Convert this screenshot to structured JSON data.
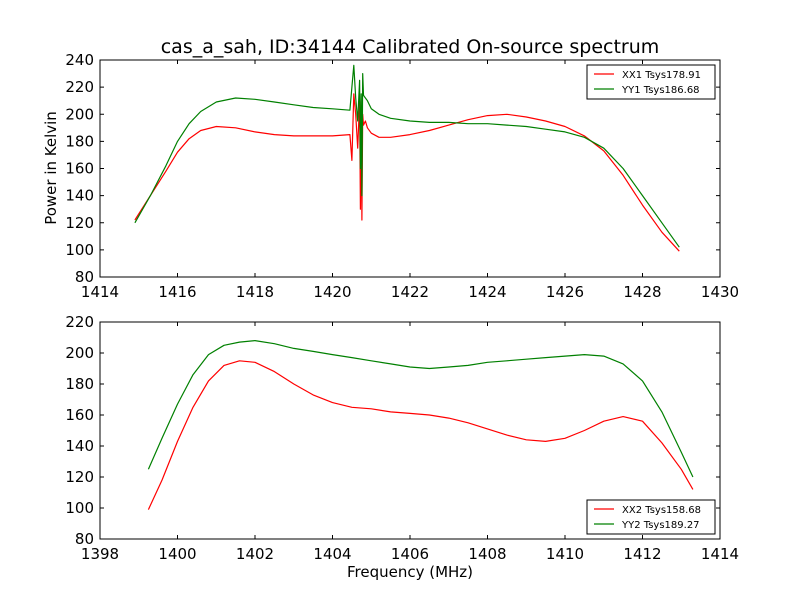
{
  "colors": {
    "red": "#ff0000",
    "green": "#008000"
  },
  "chart_data": [
    {
      "type": "line",
      "title": "cas_a_sah, ID:34144 Calibrated On-source spectrum",
      "xlabel": "",
      "ylabel": "Power in Kelvin",
      "xlim": [
        1414,
        1430
      ],
      "ylim": [
        80,
        240
      ],
      "xticks": [
        "1414",
        "1416",
        "1418",
        "1420",
        "1422",
        "1424",
        "1426",
        "1428",
        "1430"
      ],
      "yticks": [
        "80",
        "100",
        "120",
        "140",
        "160",
        "180",
        "200",
        "220",
        "240"
      ],
      "legend_position": "top-right",
      "series": [
        {
          "name": "XX1 Tsys178.91",
          "color": "#ff0000",
          "x": [
            1414.9,
            1415.3,
            1415.7,
            1416.0,
            1416.3,
            1416.6,
            1417.0,
            1417.5,
            1418.0,
            1418.5,
            1419.0,
            1419.5,
            1420.0,
            1420.45,
            1420.5,
            1420.55,
            1420.6,
            1420.65,
            1420.7,
            1420.72,
            1420.74,
            1420.76,
            1420.78,
            1420.8,
            1420.85,
            1420.9,
            1421.0,
            1421.2,
            1421.5,
            1422.0,
            1422.5,
            1423.0,
            1423.5,
            1424.0,
            1424.5,
            1425.0,
            1425.5,
            1426.0,
            1426.5,
            1427.0,
            1427.5,
            1428.0,
            1428.5,
            1428.95
          ],
          "values": [
            122,
            140,
            158,
            172,
            182,
            188,
            191,
            190,
            187,
            185,
            184,
            184,
            184,
            185,
            166,
            215,
            200,
            175,
            210,
            130,
            205,
            122,
            200,
            192,
            195,
            190,
            186,
            183,
            183,
            185,
            188,
            192,
            196,
            199,
            200,
            198,
            195,
            191,
            184,
            173,
            155,
            133,
            113,
            99
          ]
        },
        {
          "name": "YY1 Tsys186.68",
          "color": "#008000",
          "x": [
            1414.9,
            1415.3,
            1415.7,
            1416.0,
            1416.3,
            1416.6,
            1417.0,
            1417.5,
            1418.0,
            1418.5,
            1419.0,
            1419.5,
            1420.0,
            1420.45,
            1420.5,
            1420.55,
            1420.6,
            1420.65,
            1420.7,
            1420.72,
            1420.74,
            1420.76,
            1420.78,
            1420.8,
            1420.85,
            1420.9,
            1421.0,
            1421.2,
            1421.5,
            1422.0,
            1422.5,
            1423.0,
            1423.5,
            1424.0,
            1424.5,
            1425.0,
            1425.5,
            1426.0,
            1426.5,
            1427.0,
            1427.5,
            1428.0,
            1428.5,
            1428.95
          ],
          "values": [
            120,
            140,
            162,
            180,
            193,
            202,
            209,
            212,
            211,
            209,
            207,
            205,
            204,
            203,
            220,
            236,
            212,
            195,
            225,
            160,
            215,
            140,
            230,
            214,
            212,
            210,
            204,
            200,
            197,
            195,
            194,
            194,
            193,
            193,
            192,
            191,
            189,
            187,
            183,
            175,
            160,
            140,
            120,
            102
          ]
        }
      ]
    },
    {
      "type": "line",
      "title": "",
      "xlabel": "Frequency (MHz)",
      "ylabel": "",
      "xlim": [
        1398,
        1414
      ],
      "ylim": [
        80,
        220
      ],
      "xticks": [
        "1398",
        "1400",
        "1402",
        "1404",
        "1406",
        "1408",
        "1410",
        "1412",
        "1414"
      ],
      "yticks": [
        "80",
        "100",
        "120",
        "140",
        "160",
        "180",
        "200",
        "220"
      ],
      "legend_position": "bottom-right",
      "series": [
        {
          "name": "XX2 Tsys158.68",
          "color": "#ff0000",
          "x": [
            1399.25,
            1399.6,
            1400.0,
            1400.4,
            1400.8,
            1401.2,
            1401.6,
            1402.0,
            1402.5,
            1403.0,
            1403.5,
            1404.0,
            1404.5,
            1405.0,
            1405.5,
            1406.0,
            1406.5,
            1407.0,
            1407.5,
            1408.0,
            1408.5,
            1409.0,
            1409.5,
            1410.0,
            1410.5,
            1411.0,
            1411.5,
            1412.0,
            1412.5,
            1413.0,
            1413.3
          ],
          "values": [
            99,
            118,
            143,
            165,
            182,
            192,
            195,
            194,
            188,
            180,
            173,
            168,
            165,
            164,
            162,
            161,
            160,
            158,
            155,
            151,
            147,
            144,
            143,
            145,
            150,
            156,
            159,
            156,
            142,
            125,
            112
          ]
        },
        {
          "name": "YY2 Tsys189.27",
          "color": "#008000",
          "x": [
            1399.25,
            1399.6,
            1400.0,
            1400.4,
            1400.8,
            1401.2,
            1401.6,
            1402.0,
            1402.5,
            1403.0,
            1403.5,
            1404.0,
            1404.5,
            1405.0,
            1405.5,
            1406.0,
            1406.5,
            1407.0,
            1407.5,
            1408.0,
            1408.5,
            1409.0,
            1409.5,
            1410.0,
            1410.5,
            1411.0,
            1411.5,
            1412.0,
            1412.5,
            1413.0,
            1413.3
          ],
          "values": [
            125,
            145,
            167,
            186,
            199,
            205,
            207,
            208,
            206,
            203,
            201,
            199,
            197,
            195,
            193,
            191,
            190,
            191,
            192,
            194,
            195,
            196,
            197,
            198,
            199,
            198,
            193,
            182,
            162,
            136,
            120
          ]
        }
      ]
    }
  ]
}
